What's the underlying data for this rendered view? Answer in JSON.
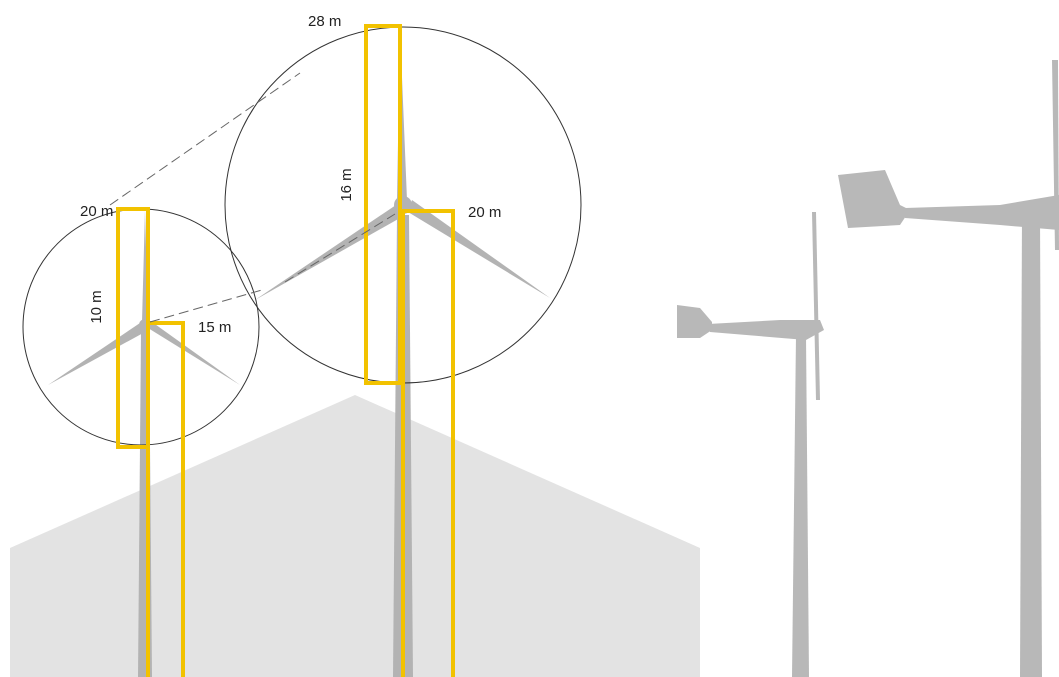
{
  "small_turbine": {
    "top_label": "20 m",
    "blade_label": "10 m",
    "hub_label": "15 m"
  },
  "large_turbine": {
    "top_label": "28 m",
    "blade_label": "16 m",
    "hub_label": "20 m"
  }
}
